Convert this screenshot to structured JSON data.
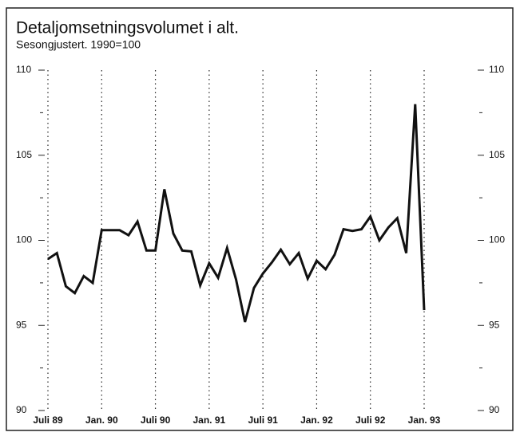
{
  "chart_data": {
    "type": "line",
    "title": "Detaljomsetningsvolumet i alt.",
    "subtitle": "Sesongjustert. 1990=100",
    "categories": [
      "Juli 89",
      null,
      null,
      null,
      null,
      null,
      "Jan. 90",
      null,
      null,
      null,
      null,
      null,
      "Juli 90",
      null,
      null,
      null,
      null,
      null,
      "Jan. 91",
      null,
      null,
      null,
      null,
      null,
      "Juli 91",
      null,
      null,
      null,
      null,
      null,
      "Jan. 92",
      null,
      null,
      null,
      null,
      null,
      "Juli 92",
      null,
      null,
      null,
      null,
      null,
      "Jan. 93"
    ],
    "values": [
      98.9,
      99.25,
      97.3,
      96.9,
      97.9,
      97.5,
      100.6,
      100.6,
      100.6,
      100.3,
      101.1,
      99.4,
      99.4,
      103.0,
      100.4,
      99.4,
      99.35,
      97.35,
      98.65,
      97.8,
      99.55,
      97.7,
      95.2,
      97.2,
      98.05,
      98.7,
      99.45,
      98.6,
      99.25,
      97.75,
      98.8,
      98.3,
      99.15,
      100.65,
      100.55,
      100.65,
      101.4,
      100.0,
      100.75,
      101.3,
      99.25,
      108.0,
      95.9
    ],
    "color": "#111111",
    "ylim": [
      90,
      110
    ],
    "yticks": [
      90,
      95,
      100,
      105,
      110
    ],
    "yminorticks": [
      92.5,
      97.5,
      102.5,
      107.5
    ],
    "grid": true
  }
}
